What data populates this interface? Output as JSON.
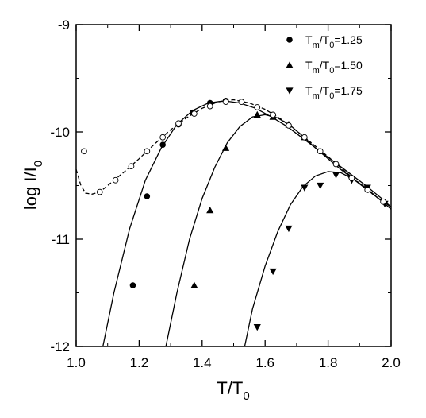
{
  "chart_data": {
    "type": "scatter",
    "title": "",
    "xlabel": {
      "main": "T/T",
      "sub": "0"
    },
    "ylabel": {
      "main": "log I/I",
      "sub": "0"
    },
    "xlim": [
      1.0,
      2.0
    ],
    "ylim": [
      -12,
      -9
    ],
    "xticks": [
      1.0,
      1.2,
      1.4,
      1.6,
      1.8,
      2.0
    ],
    "xtick_labels": [
      "1.0",
      "1.2",
      "1.4",
      "1.6",
      "1.8",
      "2.0"
    ],
    "yticks": [
      -12,
      -11,
      -10,
      -9
    ],
    "ytick_labels": [
      "-12",
      "-11",
      "-10",
      "-9"
    ],
    "grid": false,
    "legend_position": "top-right",
    "legend": [
      {
        "marker": "circle",
        "parts": [
          "T",
          "m",
          "/T",
          "0",
          "=1.25"
        ]
      },
      {
        "marker": "triangle-up",
        "parts": [
          "T",
          "m",
          "/T",
          "0",
          "=1.50"
        ]
      },
      {
        "marker": "triangle-down",
        "parts": [
          "T",
          "m",
          "/T",
          "0",
          "=1.75"
        ]
      }
    ],
    "series": [
      {
        "marker": "circle",
        "points": [
          [
            1.18,
            -11.43
          ],
          [
            1.225,
            -10.6
          ],
          [
            1.275,
            -10.12
          ],
          [
            1.325,
            -9.93
          ],
          [
            1.37,
            -9.82
          ],
          [
            1.425,
            -9.73
          ],
          [
            1.475,
            -9.71
          ]
        ]
      },
      {
        "marker": "triangle-up",
        "points": [
          [
            1.375,
            -11.43
          ],
          [
            1.425,
            -10.73
          ],
          [
            1.475,
            -10.15
          ],
          [
            1.575,
            -9.84
          ],
          [
            1.625,
            -9.86
          ],
          [
            1.675,
            -9.93
          ],
          [
            1.725,
            -10.05
          ]
        ]
      },
      {
        "marker": "triangle-down",
        "points": [
          [
            1.575,
            -11.82
          ],
          [
            1.625,
            -11.3
          ],
          [
            1.675,
            -10.9
          ],
          [
            1.725,
            -10.52
          ],
          [
            1.775,
            -10.5
          ],
          [
            1.825,
            -10.4
          ],
          [
            1.875,
            -10.45
          ],
          [
            1.925,
            -10.52
          ],
          [
            1.98,
            -10.67
          ]
        ]
      },
      {
        "marker": "open-circle",
        "points": [
          [
            1.025,
            -10.18
          ],
          [
            1.075,
            -10.56
          ],
          [
            1.125,
            -10.45
          ],
          [
            1.175,
            -10.32
          ],
          [
            1.225,
            -10.18
          ],
          [
            1.275,
            -10.05
          ],
          [
            1.325,
            -9.92
          ],
          [
            1.375,
            -9.83
          ],
          [
            1.425,
            -9.76
          ],
          [
            1.475,
            -9.72
          ],
          [
            1.525,
            -9.72
          ],
          [
            1.575,
            -9.77
          ],
          [
            1.625,
            -9.84
          ],
          [
            1.675,
            -9.94
          ],
          [
            1.725,
            -10.05
          ],
          [
            1.775,
            -10.18
          ],
          [
            1.825,
            -10.3
          ],
          [
            1.875,
            -10.43
          ],
          [
            1.925,
            -10.54
          ],
          [
            1.975,
            -10.65
          ]
        ]
      }
    ],
    "fit_curves": [
      {
        "style": "solid",
        "points": [
          [
            1.085,
            -12.0
          ],
          [
            1.12,
            -11.5
          ],
          [
            1.17,
            -10.9
          ],
          [
            1.22,
            -10.45
          ],
          [
            1.27,
            -10.15
          ],
          [
            1.32,
            -9.93
          ],
          [
            1.37,
            -9.8
          ],
          [
            1.42,
            -9.73
          ],
          [
            1.47,
            -9.71
          ],
          [
            1.52,
            -9.73
          ],
          [
            1.57,
            -9.78
          ],
          [
            1.62,
            -9.86
          ],
          [
            1.67,
            -9.95
          ],
          [
            1.72,
            -10.06
          ],
          [
            1.77,
            -10.17
          ],
          [
            1.82,
            -10.28
          ],
          [
            1.87,
            -10.39
          ],
          [
            1.92,
            -10.5
          ],
          [
            1.97,
            -10.62
          ],
          [
            2.0,
            -10.7
          ]
        ]
      },
      {
        "style": "solid",
        "points": [
          [
            1.285,
            -12.0
          ],
          [
            1.32,
            -11.5
          ],
          [
            1.36,
            -11.0
          ],
          [
            1.4,
            -10.62
          ],
          [
            1.44,
            -10.33
          ],
          [
            1.48,
            -10.1
          ],
          [
            1.52,
            -9.95
          ],
          [
            1.56,
            -9.86
          ],
          [
            1.6,
            -9.84
          ],
          [
            1.64,
            -9.87
          ],
          [
            1.68,
            -9.94
          ],
          [
            1.72,
            -10.04
          ],
          [
            1.76,
            -10.15
          ],
          [
            1.8,
            -10.25
          ],
          [
            1.84,
            -10.35
          ],
          [
            1.88,
            -10.44
          ],
          [
            1.92,
            -10.53
          ],
          [
            1.96,
            -10.62
          ],
          [
            2.0,
            -10.7
          ]
        ]
      },
      {
        "style": "solid",
        "points": [
          [
            1.535,
            -12.0
          ],
          [
            1.56,
            -11.65
          ],
          [
            1.6,
            -11.25
          ],
          [
            1.64,
            -10.93
          ],
          [
            1.68,
            -10.68
          ],
          [
            1.72,
            -10.51
          ],
          [
            1.76,
            -10.41
          ],
          [
            1.8,
            -10.37
          ],
          [
            1.84,
            -10.38
          ],
          [
            1.88,
            -10.44
          ],
          [
            1.92,
            -10.52
          ],
          [
            1.96,
            -10.62
          ],
          [
            2.0,
            -10.72
          ]
        ]
      },
      {
        "style": "dashed",
        "points": [
          [
            1.0,
            -10.35
          ],
          [
            1.015,
            -10.5
          ],
          [
            1.03,
            -10.57
          ],
          [
            1.05,
            -10.58
          ],
          [
            1.075,
            -10.56
          ],
          [
            1.1,
            -10.5
          ],
          [
            1.15,
            -10.38
          ],
          [
            1.2,
            -10.25
          ],
          [
            1.25,
            -10.11
          ],
          [
            1.3,
            -9.98
          ],
          [
            1.35,
            -9.87
          ],
          [
            1.4,
            -9.78
          ],
          [
            1.45,
            -9.72
          ],
          [
            1.5,
            -9.7
          ],
          [
            1.55,
            -9.73
          ],
          [
            1.6,
            -9.79
          ],
          [
            1.65,
            -9.88
          ],
          [
            1.7,
            -9.99
          ],
          [
            1.75,
            -10.11
          ],
          [
            1.8,
            -10.23
          ],
          [
            1.85,
            -10.36
          ],
          [
            1.9,
            -10.48
          ],
          [
            1.95,
            -10.6
          ],
          [
            2.0,
            -10.7
          ]
        ]
      }
    ]
  }
}
